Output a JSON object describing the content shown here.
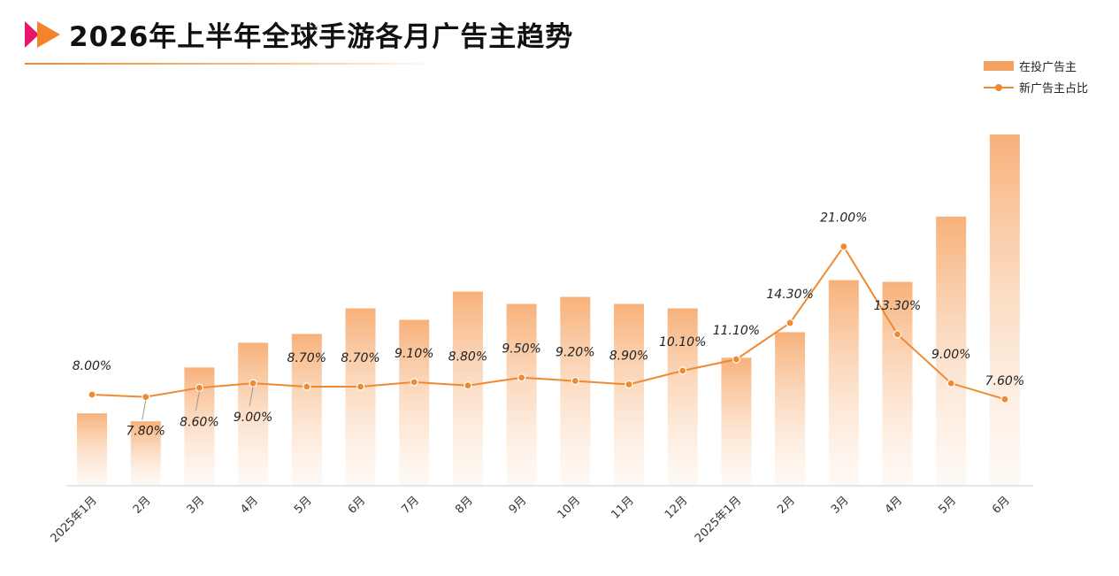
{
  "title": "2026年上半年全球手游各月广告主趋势",
  "colors": {
    "bar": "#f4a262",
    "line": "#ef8a33",
    "logo_pink": "#e8156b",
    "logo_orange": "#f5832a"
  },
  "legend": {
    "bar_label": "在投广告主",
    "line_label": "新广告主占比"
  },
  "chart_data": {
    "type": "bar",
    "categories": [
      "2025年1月",
      "2月",
      "3月",
      "4月",
      "5月",
      "6月",
      "7月",
      "8月",
      "9月",
      "10月",
      "11月",
      "12月",
      "2025年1月",
      "2月",
      "3月",
      "4月",
      "5月",
      "6月"
    ],
    "series": [
      {
        "name": "在投广告主",
        "type": "bar",
        "values": [
          82,
          73,
          134,
          162,
          172,
          201,
          188,
          220,
          206,
          214,
          206,
          201,
          145,
          174,
          233,
          231,
          305,
          398
        ]
      },
      {
        "name": "新广告主占比",
        "type": "line",
        "values": [
          8.0,
          7.8,
          8.6,
          9.0,
          8.7,
          8.7,
          9.1,
          8.8,
          9.5,
          9.2,
          8.9,
          10.1,
          11.1,
          14.3,
          21.0,
          13.3,
          9.0,
          7.6
        ],
        "labels": [
          "8.00%",
          "7.80%",
          "8.60%",
          "9.00%",
          "8.70%",
          "8.70%",
          "9.10%",
          "8.80%",
          "9.50%",
          "9.20%",
          "8.90%",
          "10.10%",
          "11.10%",
          "14.30%",
          "21.00%",
          "13.30%",
          "9.00%",
          "7.60%"
        ]
      }
    ],
    "bar_ylim": [
      0,
      400
    ],
    "line_ylim": [
      0,
      31
    ],
    "legend_position": "top-right",
    "grid": false
  }
}
